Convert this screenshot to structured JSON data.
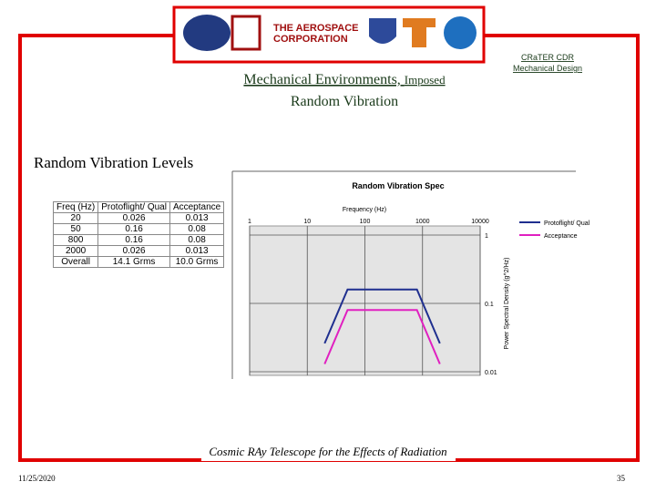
{
  "logo_text": [
    "THE AEROSPACE",
    "CORPORATION"
  ],
  "header": {
    "title_line1": "Mechanical Environments, ",
    "title_suffix": "Imposed",
    "title_line2": "Random Vibration",
    "corner_note": [
      "CRaTER CDR",
      "Mechanical Design"
    ]
  },
  "section_heading": "Random Vibration Levels",
  "table": {
    "header": [
      "Freq (Hz)",
      "Protoflight/ Qual",
      "Acceptance"
    ],
    "rows": [
      [
        "20",
        "0.026",
        "0.013"
      ],
      [
        "50",
        "0.16",
        "0.08"
      ],
      [
        "800",
        "0.16",
        "0.08"
      ],
      [
        "2000",
        "0.026",
        "0.013"
      ],
      [
        "Overall",
        "14.1 Grms",
        "10.0 Grms"
      ]
    ]
  },
  "chart": {
    "type": "line",
    "title": "Random Vibration Spec",
    "x_label": "Frequency (Hz)",
    "y_label": "Power Spectral Density (g^2/Hz)",
    "x": [
      20,
      50,
      800,
      2000
    ],
    "series": [
      {
        "name": "Protoflight/ Qual",
        "color": "#1f2f8f",
        "values": [
          0.026,
          0.16,
          0.16,
          0.026
        ]
      },
      {
        "name": "Acceptance",
        "color": "#e020c0",
        "values": [
          0.013,
          0.08,
          0.08,
          0.013
        ]
      }
    ],
    "xlim": [
      1,
      10000
    ],
    "xticks": [
      1,
      10,
      100,
      1000,
      10000
    ],
    "ylim": [
      0.01,
      1
    ],
    "yticks": [
      1,
      0.1,
      0.01
    ],
    "log_x": true,
    "log_y": true,
    "grid": true
  },
  "footer": {
    "tagline": "Cosmic RAy Telescope for the Effects of Radiation",
    "date": "11/25/2020",
    "page": "35"
  }
}
